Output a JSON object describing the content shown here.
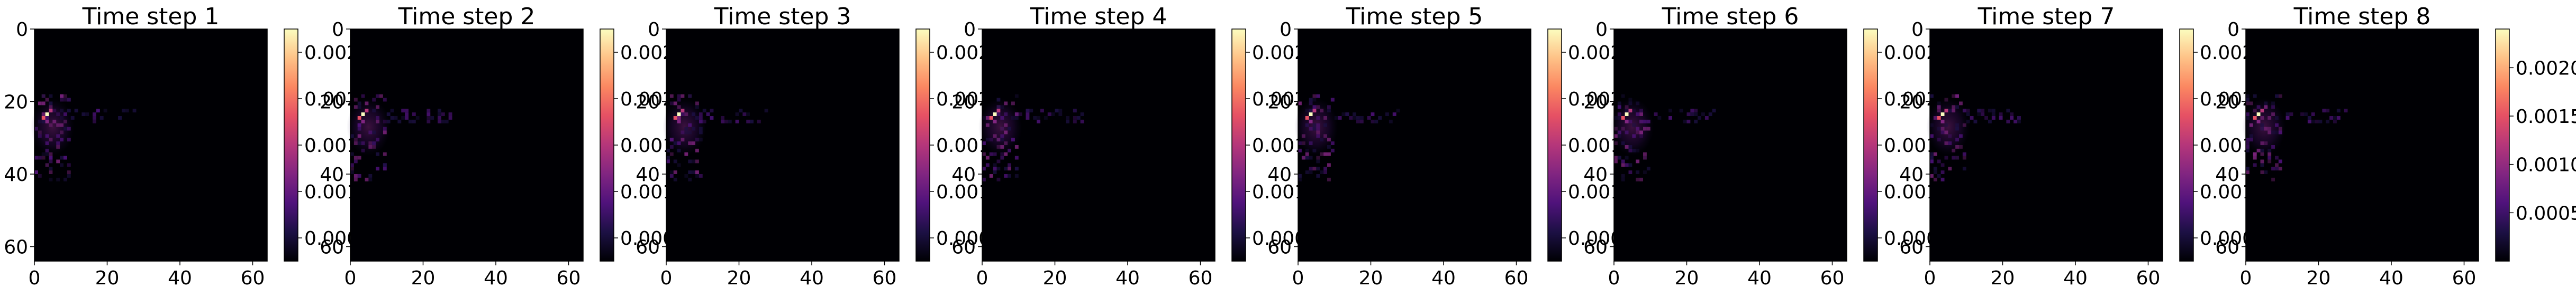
{
  "colormap": "magma",
  "colors": {
    "background": "#000004",
    "cmap_stops": [
      "#000004",
      "#1c1044",
      "#4f127b",
      "#812581",
      "#b5367a",
      "#e55064",
      "#fb8761",
      "#fec287",
      "#fcfdbf"
    ]
  },
  "chart_data": [
    {
      "type": "heatmap",
      "title": "Time step 1",
      "xlim": [
        0,
        64
      ],
      "ylim": [
        64,
        0
      ],
      "x_ticks": [
        "0",
        "20",
        "40",
        "60"
      ],
      "y_ticks": [
        "0",
        "20",
        "40",
        "60"
      ],
      "colorbar_ticks": [
        "0.000",
        "0.001",
        "0.001",
        "0.002",
        "0.002"
      ],
      "colorbar_range": [
        0.0,
        0.0025
      ],
      "peak": {
        "x": 3,
        "y": 23,
        "value": 0.0025
      }
    },
    {
      "type": "heatmap",
      "title": "Time step 2",
      "xlim": [
        0,
        64
      ],
      "ylim": [
        64,
        0
      ],
      "x_ticks": [
        "0",
        "20",
        "40",
        "60"
      ],
      "y_ticks": [
        "0",
        "20",
        "40",
        "60"
      ],
      "colorbar_ticks": [
        "0.000",
        "0.001",
        "0.001",
        "0.002",
        "0.002"
      ],
      "colorbar_range": [
        0.0,
        0.0025
      ],
      "peak": {
        "x": 3,
        "y": 23,
        "value": 0.0025
      }
    },
    {
      "type": "heatmap",
      "title": "Time step 3",
      "xlim": [
        0,
        64
      ],
      "ylim": [
        64,
        0
      ],
      "x_ticks": [
        "0",
        "20",
        "40",
        "60"
      ],
      "y_ticks": [
        "0",
        "20",
        "40",
        "60"
      ],
      "colorbar_ticks": [
        "0.000",
        "0.001",
        "0.001",
        "0.002",
        "0.0025"
      ],
      "colorbar_range": [
        0.0,
        0.0025
      ],
      "peak": {
        "x": 3,
        "y": 23,
        "value": 0.0025
      }
    },
    {
      "type": "heatmap",
      "title": "Time step 4",
      "xlim": [
        0,
        64
      ],
      "ylim": [
        64,
        0
      ],
      "x_ticks": [
        "0",
        "20",
        "40",
        "60"
      ],
      "y_ticks": [
        "0",
        "20",
        "40",
        "60"
      ],
      "colorbar_ticks": [
        "0.000",
        "0.001",
        "0.001",
        "0.002",
        "0.0025"
      ],
      "colorbar_range": [
        0.0,
        0.0025
      ],
      "peak": {
        "x": 3,
        "y": 23,
        "value": 0.0025
      }
    },
    {
      "type": "heatmap",
      "title": "Time step 5",
      "xlim": [
        0,
        64
      ],
      "ylim": [
        64,
        0
      ],
      "x_ticks": [
        "0",
        "20",
        "40",
        "60"
      ],
      "y_ticks": [
        "0",
        "20",
        "40",
        "60"
      ],
      "colorbar_ticks": [
        "0.000",
        "0.001",
        "0.001",
        "0.002",
        "0.002"
      ],
      "colorbar_range": [
        0.0,
        0.0025
      ],
      "peak": {
        "x": 3,
        "y": 23,
        "value": 0.0025
      }
    },
    {
      "type": "heatmap",
      "title": "Time step 6",
      "xlim": [
        0,
        64
      ],
      "ylim": [
        64,
        0
      ],
      "x_ticks": [
        "0",
        "20",
        "40",
        "60"
      ],
      "y_ticks": [
        "0",
        "20",
        "40",
        "60"
      ],
      "colorbar_ticks": [
        "0.000",
        "0.001",
        "0.001",
        "0.002",
        "0.0025"
      ],
      "colorbar_range": [
        0.0,
        0.0025
      ],
      "peak": {
        "x": 3,
        "y": 23,
        "value": 0.0025
      }
    },
    {
      "type": "heatmap",
      "title": "Time step 7",
      "xlim": [
        0,
        64
      ],
      "ylim": [
        64,
        0
      ],
      "x_ticks": [
        "0",
        "20",
        "40",
        "60"
      ],
      "y_ticks": [
        "0",
        "20",
        "40",
        "60"
      ],
      "colorbar_ticks": [
        "0.000",
        "0.001",
        "0.001",
        "0.002",
        "0.002"
      ],
      "colorbar_range": [
        0.0,
        0.0025
      ],
      "peak": {
        "x": 3,
        "y": 23,
        "value": 0.0025
      }
    },
    {
      "type": "heatmap",
      "title": "Time step 8",
      "xlim": [
        0,
        64
      ],
      "ylim": [
        64,
        0
      ],
      "x_ticks": [
        "0",
        "20",
        "40",
        "60"
      ],
      "y_ticks": [
        "0",
        "20",
        "40",
        "60"
      ],
      "colorbar_ticks": [
        "0.0005",
        "0.0010",
        "0.0015",
        "0.0020"
      ],
      "colorbar_tick_values": [
        0.0005,
        0.001,
        0.0015,
        0.002
      ],
      "colorbar_range": [
        0.0,
        0.0024
      ],
      "peak": {
        "x": 3,
        "y": 23,
        "value": 0.0024
      }
    }
  ]
}
